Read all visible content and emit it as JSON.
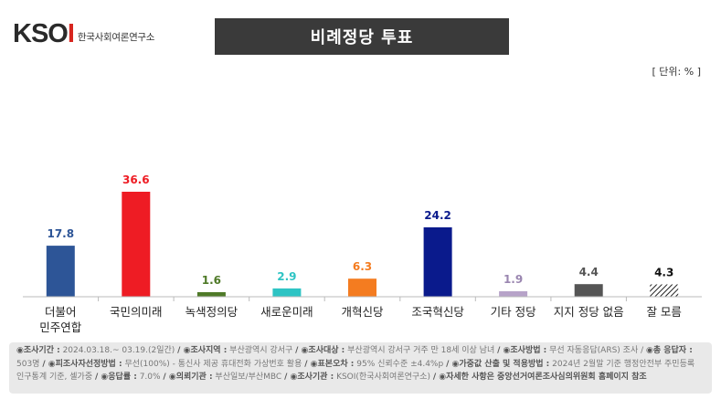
{
  "logo": {
    "mark": "KSOI",
    "subtitle": "한국사회여론연구소"
  },
  "title": "비례정당 투표",
  "unit_label": "[ 단위: % ]",
  "chart_data": {
    "type": "bar",
    "title": "비례정당 투표",
    "ylabel": "",
    "xlabel": "",
    "ylim": [
      0,
      40
    ],
    "categories": [
      [
        "더불어",
        "민주연합"
      ],
      [
        "국민의미래"
      ],
      [
        "녹색정의당"
      ],
      [
        "새로운미래"
      ],
      [
        "개혁신당"
      ],
      [
        "조국혁신당"
      ],
      [
        "기타 정당"
      ],
      [
        "지지 정당 없음"
      ],
      [
        "잘 모름"
      ]
    ],
    "values": [
      17.8,
      36.6,
      1.6,
      2.9,
      6.3,
      24.2,
      1.9,
      4.4,
      4.3
    ],
    "value_labels": [
      "17.8",
      "36.6",
      "1.6",
      "2.9",
      "6.3",
      "24.2",
      "1.9",
      "4.4",
      "4.3"
    ],
    "colors": [
      "#2d5597",
      "#ee1c24",
      "#4f7a28",
      "#2ec4c4",
      "#f47c20",
      "#0a1a8c",
      "#b7a3c9",
      "#555555",
      "hatch"
    ],
    "label_colors": [
      "#2d5597",
      "#ee1c24",
      "#4f7a28",
      "#2ec4c4",
      "#f47c20",
      "#0a1a8c",
      "#9a86b0",
      "#555555",
      "#111111"
    ]
  },
  "footer": {
    "items": [
      {
        "k": "◉조사기간 :",
        "v": " 2024.03.18.~ 03.19.(2일간)"
      },
      {
        "k": "/ ◉조사지역 :",
        "v": " 부산광역시 강서구"
      },
      {
        "k": "/ ◉조사대상 :",
        "v": " 부산광역시 강서구 거주 만 18세 이상 남녀"
      },
      {
        "k": "/ ◉조사방법 :",
        "v": " 무선 자동응답(ARS) 조사 /"
      },
      {
        "k": "◉총 응답자 :",
        "v": " 503명"
      },
      {
        "k": "/ ◉피조사자선정방법 :",
        "v": " 무선(100%) - 통신사 제공 휴대전화 가상번호 활용"
      },
      {
        "k": "/ ◉표본오차 :",
        "v": " 95% 신뢰수준 ±4.4%p"
      },
      {
        "k": "/ ◉가중값 산출 및 적용방법 :",
        "v": " 2024년 2월말 기준 행정안전부 주민등록 인구통계 기준, 셀가중"
      },
      {
        "k": "/ ◉응답률 :",
        "v": " 7.0%"
      },
      {
        "k": "/ ◉의뢰기관 :",
        "v": " 부산일보/부산MBC"
      },
      {
        "k": "/ ◉조사기관 :",
        "v": " KSOI(한국사회여론연구소)"
      },
      {
        "k": "/ ◉자세한 사항은 중앙선거여론조사심의위원회 홈페이지 참조",
        "v": ""
      }
    ]
  }
}
